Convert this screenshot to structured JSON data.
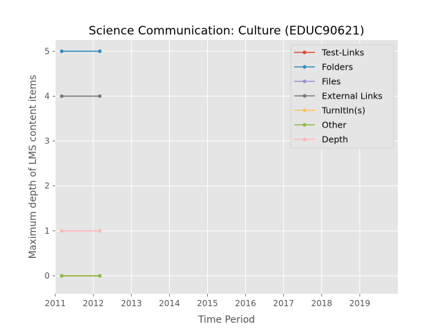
{
  "chart_data": {
    "type": "line",
    "title": "Science Communication: Culture (EDUC90621)",
    "xlabel": "Time Period",
    "ylabel": "Maximum depth of LMS content items",
    "xlim": [
      2011,
      2020
    ],
    "ylim": [
      -0.4,
      5.25
    ],
    "xticks": [
      2011,
      2012,
      2013,
      2014,
      2015,
      2016,
      2017,
      2018,
      2019
    ],
    "yticks": [
      0,
      1,
      2,
      3,
      4,
      5
    ],
    "grid": true,
    "legend_position": "top-right",
    "series": [
      {
        "name": "Test-Links",
        "color": "#e24a33",
        "x": [
          2011.17,
          2012.17
        ],
        "values": [
          0,
          0
        ]
      },
      {
        "name": "Folders",
        "color": "#348abd",
        "x": [
          2011.17,
          2012.17
        ],
        "values": [
          5,
          5
        ]
      },
      {
        "name": "Files",
        "color": "#988ed5",
        "x": [
          2011.17,
          2012.17
        ],
        "values": [
          0,
          0
        ]
      },
      {
        "name": "External Links",
        "color": "#777777",
        "x": [
          2011.17,
          2012.17
        ],
        "values": [
          4,
          4
        ]
      },
      {
        "name": "TurnItIn(s)",
        "color": "#fbc15e",
        "x": [
          2011.17,
          2012.17
        ],
        "values": [
          0,
          0
        ]
      },
      {
        "name": "Other",
        "color": "#8eba42",
        "x": [
          2011.17,
          2012.17
        ],
        "values": [
          0,
          0
        ]
      },
      {
        "name": "Depth",
        "color": "#ffb5b8",
        "x": [
          2011.17,
          2012.17
        ],
        "values": [
          1,
          1
        ]
      }
    ]
  }
}
